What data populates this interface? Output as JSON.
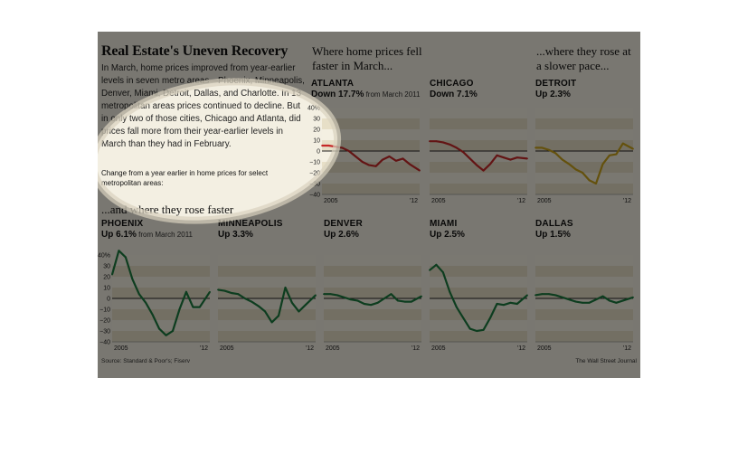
{
  "header": {
    "title": "Real Estate's Uneven Recovery",
    "intro": "In March, home prices improved from year-earlier levels in seven metro areas—Phoenix, Minneapolis, Denver, Miami, Detroit, Dallas, and Charlotte. In 13 metropolitan areas prices continued to decline. But in only two of those cities, Chicago and Atlanta, did prices fall more from their year-earlier levels in March than they had in February.",
    "note": "Change from a year earlier in home prices for select metropolitan areas:"
  },
  "sections": {
    "fell": "Where home prices fell faster in March...",
    "slower": "...where they rose at a slower pace...",
    "faster": "...and where they rose faster"
  },
  "footer": {
    "source": "Source: Standard & Poor's; Fiserv",
    "credit": "The Wall Street Journal"
  },
  "colors": {
    "falling": "#c62828",
    "slower": "#c9a21a",
    "faster": "#1b7a3e",
    "band_light": "#f4f0e2",
    "band_dark": "#e7dfc7",
    "highlight": "#ffffff"
  },
  "chart_data": [
    {
      "type": "line",
      "city": "ATLANTA",
      "change_label": "Down 17.7%",
      "change_note": "from March 2011",
      "color_key": "falling",
      "x": [
        2005,
        2005.5,
        2006,
        2006.5,
        2007,
        2007.5,
        2008,
        2008.5,
        2009,
        2009.5,
        2010,
        2010.5,
        2011,
        2011.5,
        2012.25
      ],
      "values": [
        5,
        5,
        4,
        3,
        0,
        -5,
        -10,
        -13,
        -14,
        -8,
        -5,
        -9,
        -7,
        -12,
        -18
      ],
      "xlim": [
        2005,
        2012.25
      ],
      "ylim": [
        -40,
        40
      ],
      "yticks": [
        "40%",
        "30",
        "20",
        "10",
        "0",
        "−10",
        "−20",
        "−30",
        "−40"
      ],
      "xticks": [
        "2005",
        "'12"
      ]
    },
    {
      "type": "line",
      "city": "CHICAGO",
      "change_label": "Down 7.1%",
      "change_note": "",
      "color_key": "falling",
      "x": [
        2005,
        2005.5,
        2006,
        2006.5,
        2007,
        2007.5,
        2008,
        2008.5,
        2009,
        2009.5,
        2010,
        2010.5,
        2011,
        2011.5,
        2012.25
      ],
      "values": [
        9,
        9,
        8,
        6,
        3,
        -1,
        -7,
        -13,
        -18,
        -12,
        -4,
        -6,
        -8,
        -6,
        -7
      ],
      "xlim": [
        2005,
        2012.25
      ],
      "ylim": [
        -40,
        40
      ],
      "xticks": [
        "2005",
        "'12"
      ]
    },
    {
      "type": "line",
      "city": "DETROIT",
      "change_label": "Up 2.3%",
      "change_note": "",
      "color_key": "slower",
      "x": [
        2005,
        2005.5,
        2006,
        2006.5,
        2007,
        2007.5,
        2008,
        2008.5,
        2009,
        2009.5,
        2010,
        2010.5,
        2011,
        2011.5,
        2012.25
      ],
      "values": [
        3,
        3,
        1,
        -2,
        -8,
        -12,
        -17,
        -20,
        -27,
        -30,
        -12,
        -4,
        -3,
        7,
        2
      ],
      "xlim": [
        2005,
        2012.25
      ],
      "ylim": [
        -40,
        40
      ],
      "xticks": [
        "2005",
        "'12"
      ]
    },
    {
      "type": "line",
      "city": "PHOENIX",
      "change_label": "Up 6.1%",
      "change_note": "from March 2011",
      "color_key": "faster",
      "x": [
        2005,
        2005.5,
        2006,
        2006.5,
        2007,
        2007.5,
        2008,
        2008.5,
        2009,
        2009.5,
        2010,
        2010.5,
        2011,
        2011.5,
        2012.25
      ],
      "values": [
        22,
        44,
        38,
        18,
        4,
        -4,
        -15,
        -28,
        -34,
        -30,
        -10,
        6,
        -8,
        -8,
        6
      ],
      "xlim": [
        2005,
        2012.25
      ],
      "ylim": [
        -40,
        40
      ],
      "yticks": [
        "40%",
        "30",
        "20",
        "10",
        "0",
        "−10",
        "−20",
        "−30",
        "−40"
      ],
      "xticks": [
        "2005",
        "'12"
      ]
    },
    {
      "type": "line",
      "city": "MINNEAPOLIS",
      "change_label": "Up 3.3%",
      "change_note": "",
      "color_key": "faster",
      "x": [
        2005,
        2005.5,
        2006,
        2006.5,
        2007,
        2007.5,
        2008,
        2008.5,
        2009,
        2009.5,
        2010,
        2010.5,
        2011,
        2011.5,
        2012.25
      ],
      "values": [
        8,
        7,
        5,
        4,
        0,
        -3,
        -7,
        -12,
        -22,
        -16,
        10,
        -4,
        -12,
        -6,
        3
      ],
      "xlim": [
        2005,
        2012.25
      ],
      "ylim": [
        -40,
        40
      ],
      "xticks": [
        "2005",
        "'12"
      ]
    },
    {
      "type": "line",
      "city": "DENVER",
      "change_label": "Up 2.6%",
      "change_note": "",
      "color_key": "faster",
      "x": [
        2005,
        2005.5,
        2006,
        2006.5,
        2007,
        2007.5,
        2008,
        2008.5,
        2009,
        2009.5,
        2010,
        2010.5,
        2011,
        2011.5,
        2012.25
      ],
      "values": [
        4,
        4,
        3,
        1,
        -1,
        -2,
        -5,
        -6,
        -4,
        0,
        4,
        -2,
        -3,
        -3,
        2
      ],
      "xlim": [
        2005,
        2012.25
      ],
      "ylim": [
        -40,
        40
      ],
      "xticks": [
        "2005",
        "'12"
      ]
    },
    {
      "type": "line",
      "city": "MIAMI",
      "change_label": "Up 2.5%",
      "change_note": "",
      "color_key": "faster",
      "x": [
        2005,
        2005.5,
        2006,
        2006.5,
        2007,
        2007.5,
        2008,
        2008.5,
        2009,
        2009.5,
        2010,
        2010.5,
        2011,
        2011.5,
        2012.25
      ],
      "values": [
        26,
        31,
        24,
        6,
        -8,
        -18,
        -28,
        -30,
        -29,
        -18,
        -5,
        -6,
        -4,
        -5,
        3
      ],
      "xlim": [
        2005,
        2012.25
      ],
      "ylim": [
        -40,
        40
      ],
      "xticks": [
        "2005",
        "'12"
      ]
    },
    {
      "type": "line",
      "city": "DALLAS",
      "change_label": "Up 1.5%",
      "change_note": "",
      "color_key": "faster",
      "x": [
        2005,
        2005.5,
        2006,
        2006.5,
        2007,
        2007.5,
        2008,
        2008.5,
        2009,
        2009.5,
        2010,
        2010.5,
        2011,
        2011.5,
        2012.25
      ],
      "values": [
        3,
        4,
        4,
        3,
        1,
        -1,
        -3,
        -4,
        -4,
        -1,
        2,
        -2,
        -4,
        -2,
        1
      ],
      "xlim": [
        2005,
        2012.25
      ],
      "ylim": [
        -40,
        40
      ],
      "xticks": [
        "2005",
        "'12"
      ]
    }
  ]
}
